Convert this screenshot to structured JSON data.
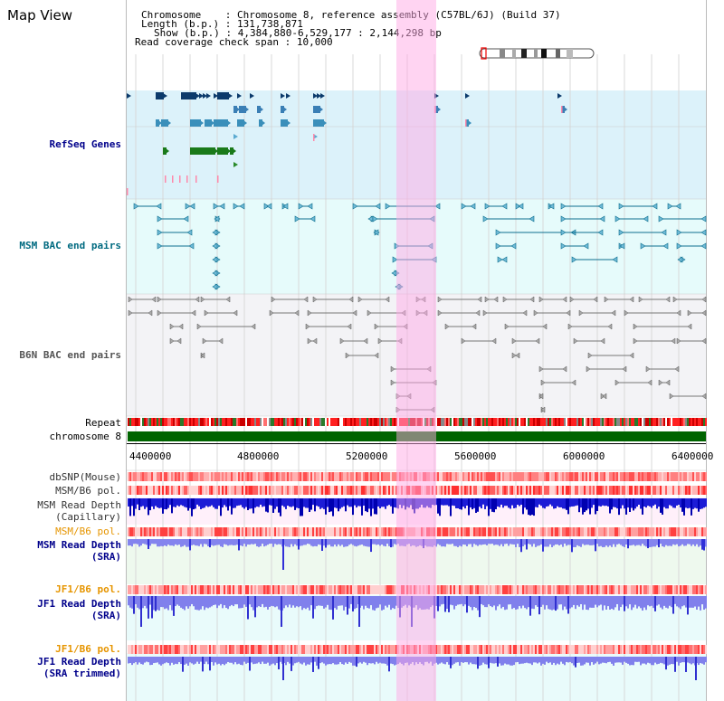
{
  "page": {
    "title": "Map View",
    "info": {
      "chromosome_label": "Chromosome",
      "chromosome_value": "Chromosome 8, reference assembly (C57BL/6J) (Build 37)",
      "length_label": "Length (b.p.)",
      "length_value": "131,738,871",
      "show_label": "Show (b.p.)",
      "show_value": "4,384,880-6,529,177 : 2,144,298 bp",
      "coverage_label": "Read coverage check span",
      "coverage_value": "10,000"
    }
  },
  "tracks": {
    "refseq": "RefSeq Genes",
    "msm_bac": "MSM BAC end pairs",
    "b6n_bac": "B6N BAC end pairs",
    "repeat": "Repeat",
    "chromosome": "chromosome 8",
    "dbsnp": "dbSNP(Mouse)",
    "msm_b6_pol_1": "MSM/B6 pol.",
    "msm_depth_cap_1": "MSM Read Depth",
    "msm_depth_cap_2": "(Capillary)",
    "msm_b6_pol_2": "MSM/B6 pol.",
    "msm_depth_sra_1": "MSM Read Depth",
    "msm_depth_sra_2": "(SRA)",
    "jf1_b6_pol_1": "JF1/B6 pol.",
    "jf1_depth_sra_1": "JF1 Read Depth",
    "jf1_depth_sra_2": "(SRA)",
    "jf1_b6_pol_2": "JF1/B6 pol.",
    "jf1_depth_trim_1": "JF1 Read Depth",
    "jf1_depth_trim_2": "(SRA trimmed)"
  },
  "axis": {
    "ticks": [
      "4400000",
      "4800000",
      "5200000",
      "5600000",
      "6000000",
      "6400000"
    ]
  },
  "colors": {
    "refseq_bg": "#dcf2fa",
    "msm_bg": "#e6fbfb",
    "b6n_bg": "#f0f0f4",
    "highlight": "#ffaae6",
    "chromosome_bar": "#006400",
    "depth_blue": "#2222dd",
    "depth_light": "#8080ee"
  }
}
